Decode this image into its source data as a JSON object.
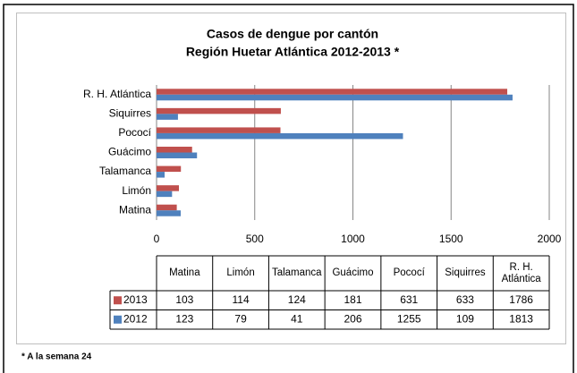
{
  "chart_data": {
    "type": "bar",
    "orientation": "horizontal",
    "title": "Casos de dengue por cantón",
    "subtitle": "Región Huetar Atlántica 2012-2013 *",
    "categories": [
      "Matina",
      "Limón",
      "Talamanca",
      "Guácimo",
      "Pococí",
      "Siquirres",
      "R. H. Atlántica"
    ],
    "series": [
      {
        "name": "2013",
        "color": "#c0504d",
        "values": [
          103,
          114,
          124,
          181,
          631,
          633,
          1786
        ]
      },
      {
        "name": "2012",
        "color": "#4f81bd",
        "values": [
          123,
          79,
          41,
          206,
          1255,
          109,
          1813
        ]
      }
    ],
    "xlim": [
      0,
      2000
    ],
    "xticks": [
      0,
      500,
      1000,
      1500,
      2000
    ],
    "grid": true,
    "data_table": true,
    "footnote": "* A la semana 24"
  }
}
